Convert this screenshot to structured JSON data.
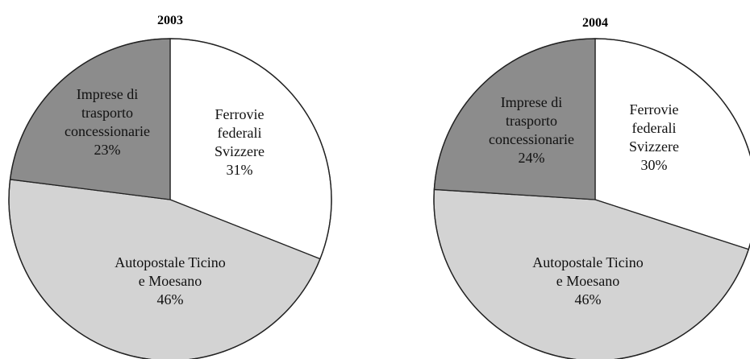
{
  "chart_data": [
    {
      "type": "pie",
      "title": "2003",
      "slices": [
        {
          "label_lines": [
            "Ferrovie",
            "federali",
            "Svizzere"
          ],
          "percent_label": "31%",
          "value": 31,
          "color": "#ffffff"
        },
        {
          "label_lines": [
            "Autopostale Ticino",
            "e Moesano"
          ],
          "percent_label": "46%",
          "value": 46,
          "color": "#d3d3d3"
        },
        {
          "label_lines": [
            "Imprese di",
            "trasporto",
            "concessionarie"
          ],
          "percent_label": "23%",
          "value": 23,
          "color": "#8c8c8c"
        }
      ]
    },
    {
      "type": "pie",
      "title": "2004",
      "slices": [
        {
          "label_lines": [
            "Ferrovie",
            "federali",
            "Svizzere"
          ],
          "percent_label": "30%",
          "value": 30,
          "color": "#ffffff"
        },
        {
          "label_lines": [
            "Autopostale Ticino",
            "e Moesano"
          ],
          "percent_label": "46%",
          "value": 46,
          "color": "#d3d3d3"
        },
        {
          "label_lines": [
            "Imprese di",
            "trasporto",
            "concessionarie"
          ],
          "percent_label": "24%",
          "value": 24,
          "color": "#8c8c8c"
        }
      ]
    }
  ]
}
